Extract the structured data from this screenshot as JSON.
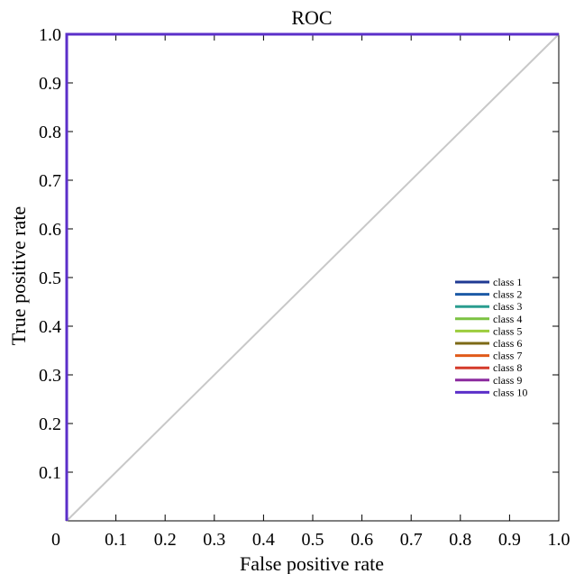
{
  "chart_data": {
    "type": "line",
    "title": "ROC",
    "xlabel": "False positive rate",
    "ylabel": "True positive rate",
    "xlim": [
      0,
      1
    ],
    "ylim": [
      0,
      1
    ],
    "x_ticks": [
      "0",
      "0.1",
      "0.2",
      "0.3",
      "0.4",
      "0.5",
      "0.6",
      "0.7",
      "0.8",
      "0.9",
      "1.0"
    ],
    "y_ticks": [
      "0.1",
      "0.2",
      "0.3",
      "0.4",
      "0.5",
      "0.6",
      "0.7",
      "0.8",
      "0.9",
      "1.0"
    ],
    "grid": false,
    "legend_position": "right",
    "baseline": {
      "x": [
        0,
        1
      ],
      "y": [
        0,
        1
      ],
      "color": "#c8c8c8"
    },
    "series": [
      {
        "name": "class 1",
        "color": "#1f3a93",
        "x": [
          0,
          0,
          1
        ],
        "y": [
          0,
          1,
          1
        ]
      },
      {
        "name": "class 2",
        "color": "#1c5aa6",
        "x": [
          0,
          0,
          1
        ],
        "y": [
          0,
          1,
          1
        ]
      },
      {
        "name": "class 3",
        "color": "#2a9d8f",
        "x": [
          0,
          0,
          1
        ],
        "y": [
          0,
          1,
          1
        ]
      },
      {
        "name": "class 4",
        "color": "#7cc242",
        "x": [
          0,
          0,
          1
        ],
        "y": [
          0,
          1,
          1
        ]
      },
      {
        "name": "class 5",
        "color": "#9ccc3c",
        "x": [
          0,
          0,
          1
        ],
        "y": [
          0,
          1,
          1
        ]
      },
      {
        "name": "class 6",
        "color": "#7d6a16",
        "x": [
          0,
          0,
          1
        ],
        "y": [
          0,
          1,
          1
        ]
      },
      {
        "name": "class 7",
        "color": "#e05a1a",
        "x": [
          0,
          0,
          1
        ],
        "y": [
          0,
          1,
          1
        ]
      },
      {
        "name": "class 8",
        "color": "#d43a2a",
        "x": [
          0,
          0,
          1
        ],
        "y": [
          0,
          1,
          1
        ]
      },
      {
        "name": "class 9",
        "color": "#8b2a9e",
        "x": [
          0,
          0,
          1
        ],
        "y": [
          0,
          1,
          1
        ]
      },
      {
        "name": "class 10",
        "color": "#5b2fc9",
        "x": [
          0,
          0,
          1
        ],
        "y": [
          0,
          1,
          1
        ]
      }
    ]
  }
}
